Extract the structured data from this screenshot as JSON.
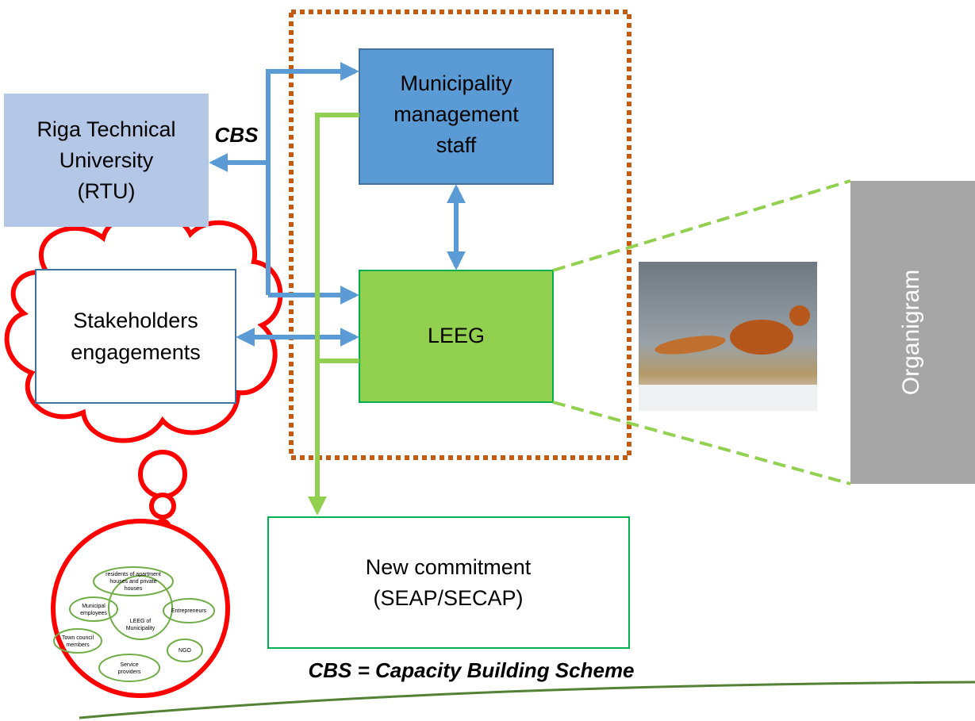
{
  "nodes": {
    "rtu": [
      "Riga Technical",
      "University",
      "(RTU)"
    ],
    "management": [
      "Municipality",
      "management",
      "staff"
    ],
    "stakeholders": [
      "Stakeholders",
      "engagements"
    ],
    "leeg": [
      "LEEG"
    ],
    "commitment": [
      "New commitment",
      "(SEAP/SECAP)"
    ],
    "organigram": "Organigram"
  },
  "labels": {
    "cbs": "CBS",
    "legend": "CBS = Capacity Building Scheme"
  },
  "stakeholder_map": {
    "center": [
      "LEEG of",
      "Municipality"
    ],
    "groups": [
      [
        "residents of apartment",
        "houses and private",
        "houses"
      ],
      [
        "Municipal",
        "employees"
      ],
      [
        "Entrepreneurs"
      ],
      [
        "Town council",
        "members"
      ],
      [
        "NGO"
      ],
      [
        "Service",
        "providers"
      ]
    ]
  }
}
